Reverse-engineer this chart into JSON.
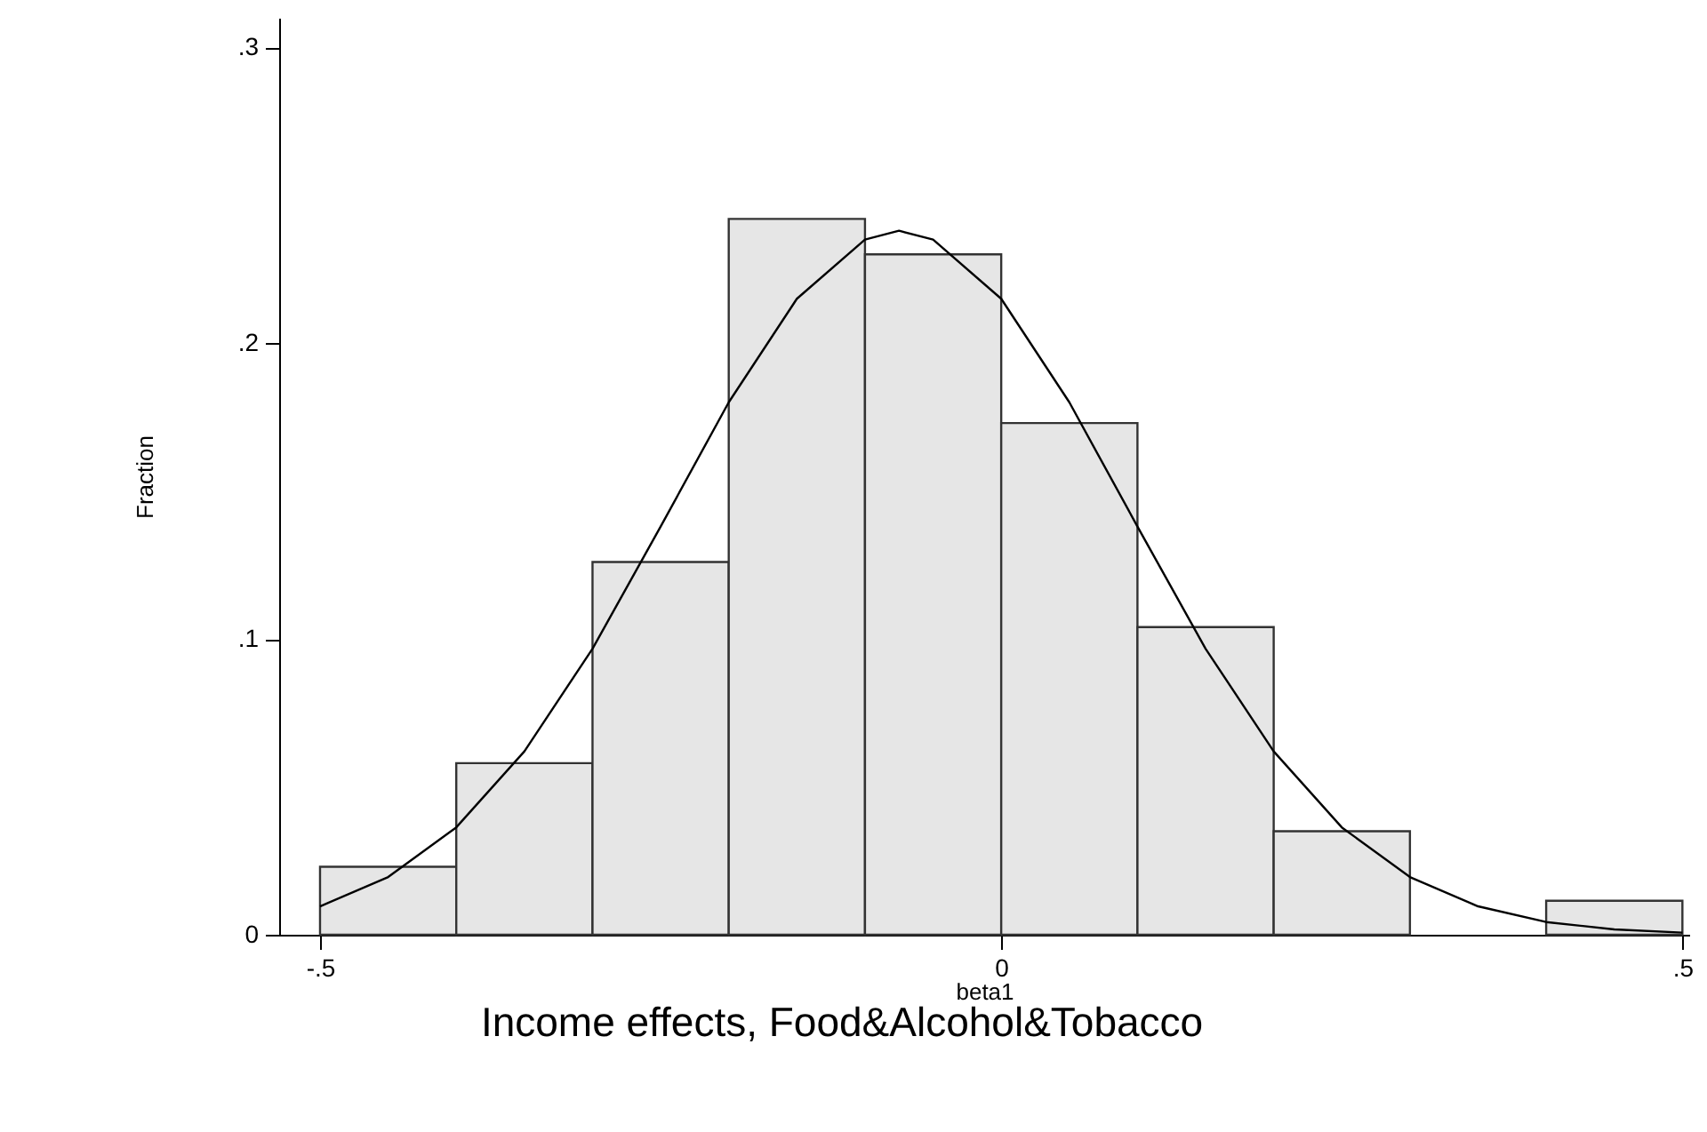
{
  "chart_data": {
    "type": "histogram",
    "title": "Income effects, Food&Alcohol&Tobacco",
    "xlabel": "beta1",
    "ylabel": "Fraction",
    "bins": [
      -0.5,
      -0.4,
      -0.3,
      -0.2,
      -0.1,
      0,
      0.1,
      0.2,
      0.3,
      0.4,
      0.5
    ],
    "values": [
      0.023,
      0.058,
      0.126,
      0.242,
      0.23,
      0.173,
      0.104,
      0.035,
      0,
      0.0115
    ],
    "color": "#e6e6e6",
    "series": [
      {
        "type": "line",
        "color": "#000000",
        "x": [
          -0.5,
          -0.45,
          -0.4,
          -0.35,
          -0.3,
          -0.25,
          -0.2,
          -0.15,
          -0.1,
          -0.075,
          -0.05,
          0,
          0.05,
          0.1,
          0.15,
          0.2,
          0.25,
          0.3,
          0.35,
          0.4,
          0.45,
          0.5
        ],
        "values": [
          0.0096,
          0.0195,
          0.0363,
          0.062,
          0.0967,
          0.138,
          0.18,
          0.215,
          0.235,
          0.238,
          0.235,
          0.215,
          0.18,
          0.138,
          0.0967,
          0.062,
          0.0363,
          0.0195,
          0.0096,
          0.0043,
          0.0018,
          0.0007
        ]
      }
    ],
    "xlim": [
      -0.53,
      0.505
    ],
    "ylim": [
      0,
      0.31
    ],
    "xticks": [
      {
        "value": -0.5,
        "label": "-.5"
      },
      0,
      {
        "value": 0.5,
        "label": ".5"
      }
    ],
    "yticks": [
      0,
      {
        "value": 0.1,
        "label": ".1"
      },
      {
        "value": 0.2,
        "label": ".2"
      },
      {
        "value": 0.3,
        "label": ".3"
      }
    ],
    "grid": false
  }
}
